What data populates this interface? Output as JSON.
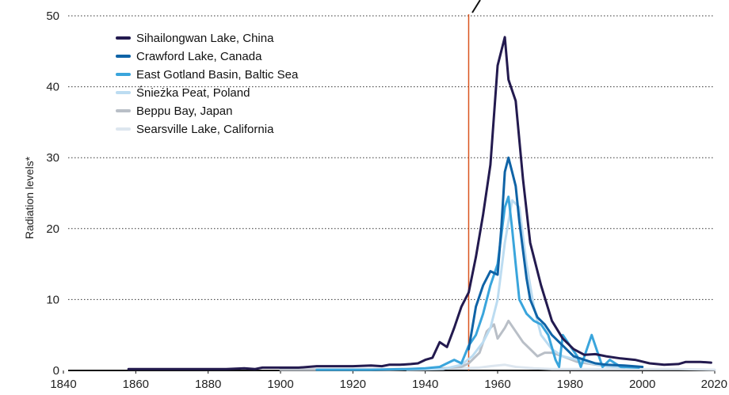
{
  "chart_data": {
    "type": "line",
    "title": "",
    "xlabel": "",
    "ylabel": "Radiation levels*",
    "xlim": [
      1840,
      2020
    ],
    "ylim": [
      0,
      50
    ],
    "x_ticks": [
      1840,
      1860,
      1880,
      1900,
      1920,
      1940,
      1960,
      1980,
      2000,
      2020
    ],
    "y_ticks": [
      0,
      10,
      20,
      30,
      40,
      50
    ],
    "grid": "horizontal dotted",
    "legend_position": "top-left",
    "marker_line": {
      "x": 1952,
      "color": "#d9541e"
    },
    "series": [
      {
        "name": "Sihailongwan Lake, China",
        "color": "#231a4f",
        "points": [
          [
            1858,
            0.2
          ],
          [
            1870,
            0.2
          ],
          [
            1880,
            0.2
          ],
          [
            1885,
            0.2
          ],
          [
            1890,
            0.3
          ],
          [
            1893,
            0.2
          ],
          [
            1895,
            0.4
          ],
          [
            1900,
            0.4
          ],
          [
            1905,
            0.4
          ],
          [
            1910,
            0.6
          ],
          [
            1915,
            0.6
          ],
          [
            1920,
            0.6
          ],
          [
            1925,
            0.7
          ],
          [
            1928,
            0.6
          ],
          [
            1930,
            0.8
          ],
          [
            1933,
            0.8
          ],
          [
            1936,
            0.9
          ],
          [
            1938,
            1.0
          ],
          [
            1940,
            1.5
          ],
          [
            1942,
            1.8
          ],
          [
            1944,
            4.0
          ],
          [
            1946,
            3.3
          ],
          [
            1948,
            6.0
          ],
          [
            1950,
            9.0
          ],
          [
            1952,
            11.0
          ],
          [
            1954,
            16.0
          ],
          [
            1956,
            22.0
          ],
          [
            1958,
            29.0
          ],
          [
            1960,
            43.0
          ],
          [
            1962,
            47.0
          ],
          [
            1963,
            41.0
          ],
          [
            1965,
            38.0
          ],
          [
            1967,
            27.0
          ],
          [
            1969,
            18.0
          ],
          [
            1972,
            12.0
          ],
          [
            1975,
            7.0
          ],
          [
            1978,
            4.5
          ],
          [
            1981,
            3.0
          ],
          [
            1984,
            2.2
          ],
          [
            1987,
            2.3
          ],
          [
            1990,
            2.0
          ],
          [
            1994,
            1.7
          ],
          [
            1998,
            1.5
          ],
          [
            2002,
            1.0
          ],
          [
            2006,
            0.8
          ],
          [
            2010,
            0.9
          ],
          [
            2012,
            1.2
          ],
          [
            2016,
            1.2
          ],
          [
            2019,
            1.1
          ]
        ]
      },
      {
        "name": "Crawford Lake, Canada",
        "color": "#0f63a6",
        "points": [
          [
            1952,
            3.0
          ],
          [
            1954,
            9.0
          ],
          [
            1956,
            12.0
          ],
          [
            1958,
            14.0
          ],
          [
            1960,
            13.5
          ],
          [
            1961,
            20.0
          ],
          [
            1962,
            28.0
          ],
          [
            1963,
            30.0
          ],
          [
            1964,
            28.0
          ],
          [
            1965,
            26.0
          ],
          [
            1966,
            21.0
          ],
          [
            1968,
            13.0
          ],
          [
            1969,
            10.0
          ],
          [
            1971,
            7.5
          ],
          [
            1973,
            6.5
          ],
          [
            1975,
            5.0
          ],
          [
            1978,
            3.5
          ],
          [
            1981,
            2.0
          ],
          [
            1984,
            1.5
          ],
          [
            1987,
            1.0
          ],
          [
            1990,
            0.8
          ],
          [
            1995,
            0.7
          ],
          [
            2000,
            0.5
          ]
        ]
      },
      {
        "name": "East Gotland Basin, Baltic Sea",
        "color": "#3aa5dc",
        "points": [
          [
            1910,
            0.1
          ],
          [
            1925,
            0.1
          ],
          [
            1935,
            0.2
          ],
          [
            1940,
            0.3
          ],
          [
            1944,
            0.5
          ],
          [
            1946,
            1.0
          ],
          [
            1948,
            1.5
          ],
          [
            1950,
            1.0
          ],
          [
            1952,
            3.5
          ],
          [
            1954,
            5.0
          ],
          [
            1956,
            8.0
          ],
          [
            1958,
            12.0
          ],
          [
            1960,
            15.0
          ],
          [
            1962,
            23.0
          ],
          [
            1963,
            24.5
          ],
          [
            1964,
            20.0
          ],
          [
            1965,
            15.0
          ],
          [
            1966,
            10.0
          ],
          [
            1968,
            8.0
          ],
          [
            1970,
            7.0
          ],
          [
            1972,
            6.5
          ],
          [
            1974,
            5.0
          ],
          [
            1976,
            1.5
          ],
          [
            1977,
            0.5
          ],
          [
            1978,
            5.0
          ],
          [
            1980,
            3.5
          ],
          [
            1982,
            2.0
          ],
          [
            1983,
            0.5
          ],
          [
            1986,
            5.0
          ],
          [
            1989,
            0.5
          ],
          [
            1991,
            1.5
          ],
          [
            1994,
            0.5
          ],
          [
            1999,
            0.4
          ]
        ]
      },
      {
        "name": "Śnieżka Peat, Poland",
        "color": "#bcdcf1",
        "points": [
          [
            1935,
            0.1
          ],
          [
            1945,
            0.2
          ],
          [
            1950,
            0.8
          ],
          [
            1953,
            2.0
          ],
          [
            1956,
            4.0
          ],
          [
            1958,
            6.0
          ],
          [
            1960,
            10.0
          ],
          [
            1962,
            18.0
          ],
          [
            1964,
            24.0
          ],
          [
            1966,
            23.0
          ],
          [
            1968,
            15.0
          ],
          [
            1970,
            9.0
          ],
          [
            1972,
            5.0
          ],
          [
            1975,
            3.0
          ],
          [
            1978,
            2.0
          ],
          [
            1982,
            1.5
          ],
          [
            1986,
            1.0
          ],
          [
            1990,
            0.6
          ],
          [
            1995,
            0.4
          ]
        ]
      },
      {
        "name": "Beppu Bay, Japan",
        "color": "#b9bfc7",
        "points": [
          [
            1900,
            0.1
          ],
          [
            1930,
            0.1
          ],
          [
            1945,
            0.3
          ],
          [
            1950,
            0.5
          ],
          [
            1952,
            1.0
          ],
          [
            1955,
            2.5
          ],
          [
            1957,
            5.5
          ],
          [
            1959,
            6.5
          ],
          [
            1960,
            4.5
          ],
          [
            1962,
            6.0
          ],
          [
            1963,
            7.0
          ],
          [
            1965,
            5.5
          ],
          [
            1967,
            4.0
          ],
          [
            1969,
            3.0
          ],
          [
            1971,
            2.0
          ],
          [
            1973,
            2.5
          ],
          [
            1975,
            2.5
          ],
          [
            1978,
            2.0
          ],
          [
            1982,
            1.2
          ],
          [
            1986,
            0.9
          ],
          [
            1990,
            0.6
          ],
          [
            1995,
            0.4
          ]
        ]
      },
      {
        "name": "Searsville Lake, California",
        "color": "#dde6ef",
        "points": [
          [
            1900,
            0.2
          ],
          [
            1930,
            0.2
          ],
          [
            1950,
            0.3
          ],
          [
            1955,
            0.4
          ],
          [
            1958,
            0.6
          ],
          [
            1962,
            0.8
          ],
          [
            1965,
            0.5
          ],
          [
            1970,
            0.3
          ],
          [
            1975,
            0.2
          ],
          [
            1980,
            0.2
          ],
          [
            1990,
            0.2
          ],
          [
            2000,
            0.2
          ],
          [
            2010,
            0.2
          ],
          [
            2020,
            0.1
          ]
        ]
      }
    ]
  }
}
